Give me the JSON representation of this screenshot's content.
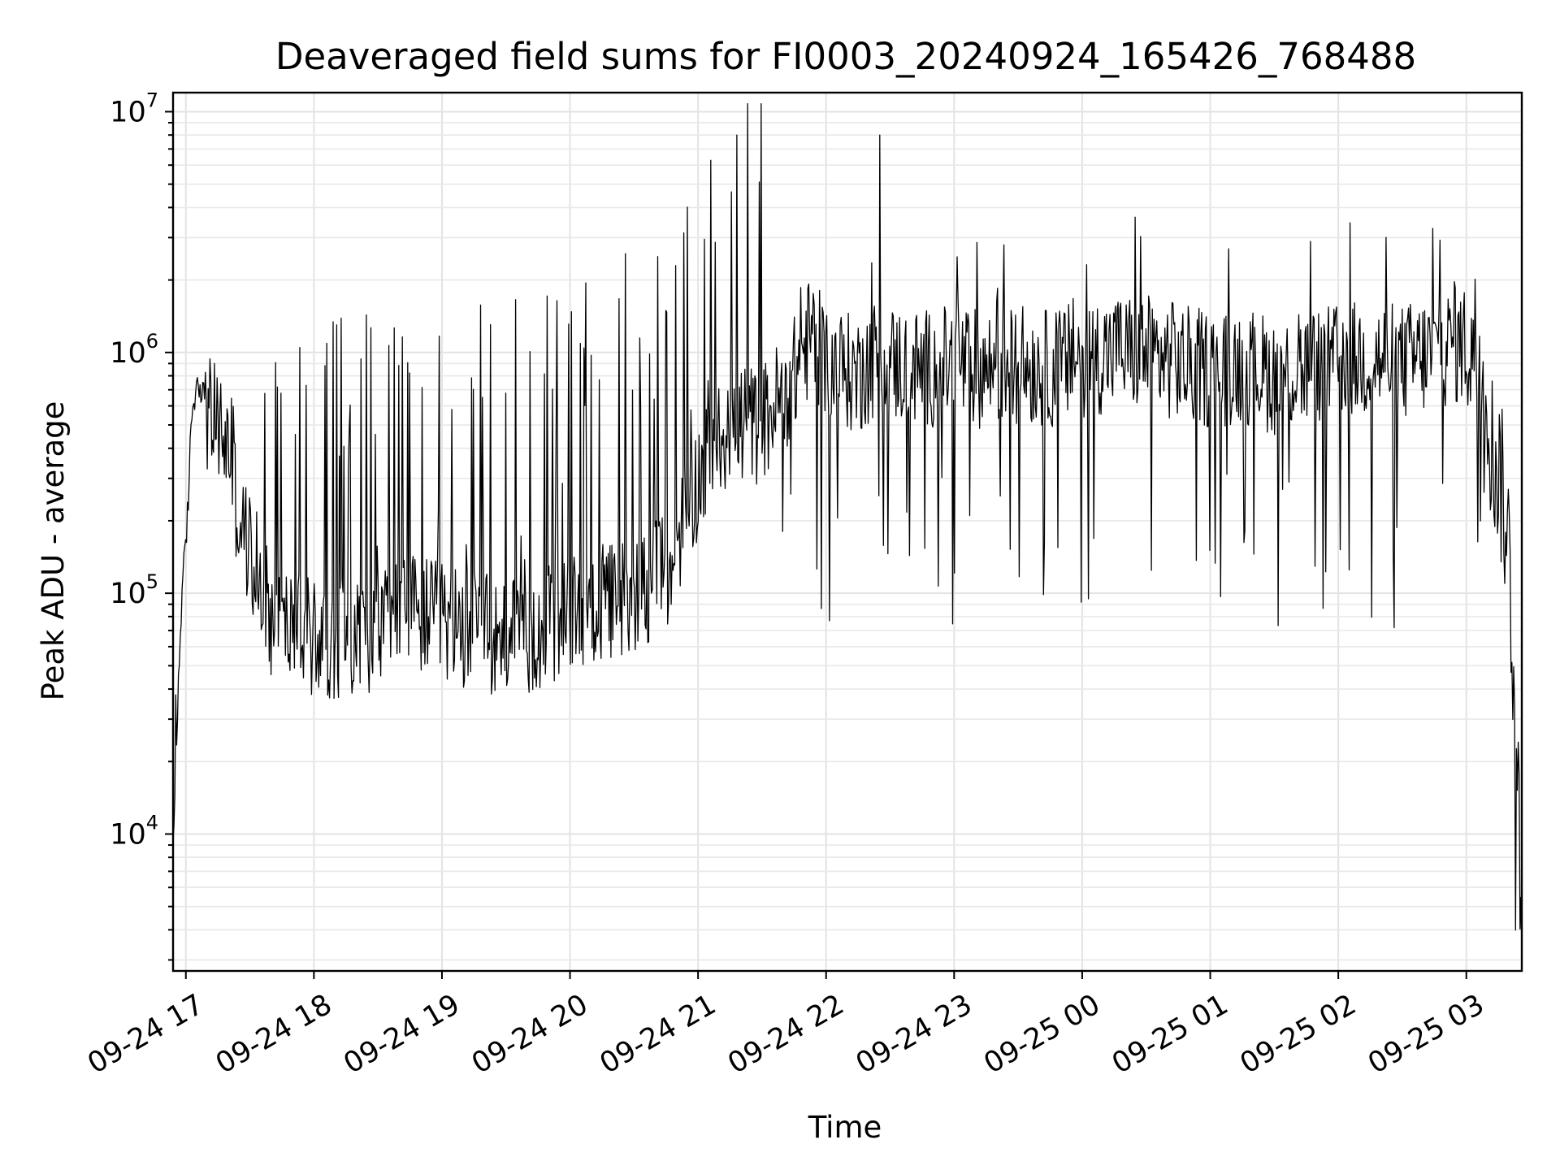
{
  "chart_data": {
    "type": "line",
    "title": "Deaveraged field sums for FI0003_20240924_165426_768488",
    "xlabel": "Time",
    "ylabel": "Peak ADU - average",
    "yscale": "log",
    "ylim": [
      2700,
      12000000
    ],
    "xlim": [
      "2024-09-24 16:54",
      "2024-09-25 03:26"
    ],
    "grid": true,
    "legend": "none",
    "line_color": "#000000",
    "x_tick_labels": [
      "09-24 17",
      "09-24 18",
      "09-24 19",
      "09-24 20",
      "09-24 21",
      "09-24 22",
      "09-24 23",
      "09-25 00",
      "09-25 01",
      "09-25 02",
      "09-25 03"
    ],
    "y_tick_labels": [
      {
        "base": "10",
        "exp": "4",
        "value": 10000
      },
      {
        "base": "10",
        "exp": "5",
        "value": 100000
      },
      {
        "base": "10",
        "exp": "6",
        "value": 1000000
      },
      {
        "base": "10",
        "exp": "7",
        "value": 10000000
      }
    ],
    "series": [
      {
        "x": [
          "2024-09-24 16:54",
          "2024-09-24 16:56",
          "2024-09-24 16:58",
          "2024-09-24 17:00",
          "2024-09-24 17:03",
          "2024-09-24 17:06",
          "2024-09-24 17:10",
          "2024-09-24 17:15",
          "2024-09-24 17:20",
          "2024-09-24 17:25",
          "2024-09-24 17:30",
          "2024-09-24 17:40",
          "2024-09-24 17:50",
          "2024-09-24 18:00",
          "2024-09-24 18:15",
          "2024-09-24 18:30",
          "2024-09-24 18:45",
          "2024-09-24 19:00",
          "2024-09-24 19:15",
          "2024-09-24 19:30",
          "2024-09-24 19:45",
          "2024-09-24 20:00",
          "2024-09-24 20:15",
          "2024-09-24 20:30",
          "2024-09-24 20:45",
          "2024-09-24 21:00",
          "2024-09-24 21:15",
          "2024-09-24 21:30",
          "2024-09-24 21:45",
          "2024-09-24 21:53",
          "2024-09-24 22:00",
          "2024-09-24 22:15",
          "2024-09-24 22:25",
          "2024-09-24 22:30",
          "2024-09-24 22:45",
          "2024-09-24 23:00",
          "2024-09-24 23:15",
          "2024-09-24 23:30",
          "2024-09-24 23:45",
          "2024-09-25 00:00",
          "2024-09-25 00:15",
          "2024-09-25 00:30",
          "2024-09-25 00:45",
          "2024-09-25 01:00",
          "2024-09-25 01:15",
          "2024-09-25 01:30",
          "2024-09-25 01:45",
          "2024-09-25 02:00",
          "2024-09-25 02:15",
          "2024-09-25 02:30",
          "2024-09-25 02:45",
          "2024-09-25 03:00",
          "2024-09-25 03:08",
          "2024-09-25 03:12",
          "2024-09-25 03:16",
          "2024-09-25 03:20",
          "2024-09-25 03:23",
          "2024-09-25 03:26"
        ],
        "y": [
          8000,
          30000,
          100000,
          150000,
          600000,
          800000,
          550000,
          500000,
          400000,
          200000,
          150000,
          80000,
          70000,
          65000,
          65000,
          70000,
          85000,
          75000,
          70000,
          65000,
          70000,
          80000,
          90000,
          100000,
          120000,
          300000,
          500000,
          500000,
          800000,
          1200000,
          900000,
          800000,
          1000000,
          900000,
          850000,
          900000,
          850000,
          900000,
          850000,
          950000,
          1000000,
          1000000,
          900000,
          850000,
          900000,
          800000,
          850000,
          900000,
          950000,
          900000,
          1000000,
          1100000,
          1000000,
          400000,
          300000,
          150000,
          30000,
          5000
        ]
      }
    ]
  }
}
